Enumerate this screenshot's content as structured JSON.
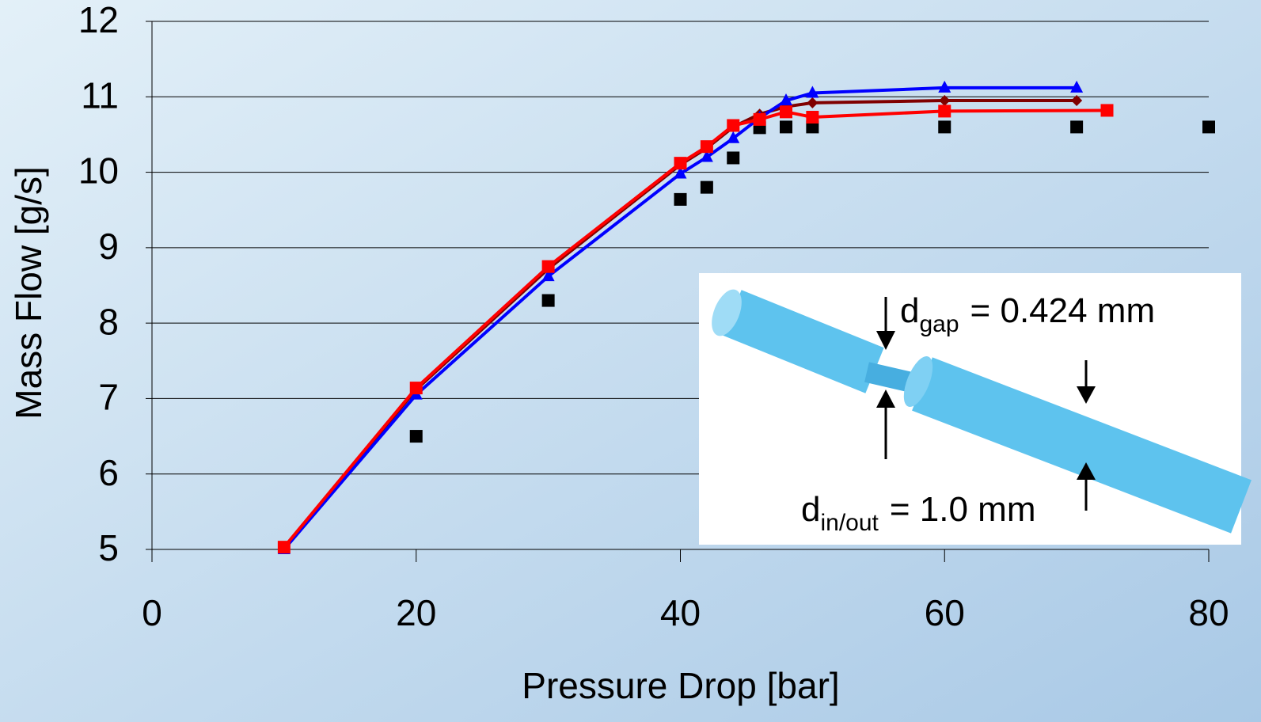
{
  "chart_data": {
    "type": "line",
    "xlabel": "Pressure Drop [bar]",
    "ylabel": "Mass Flow [g/s]",
    "xlim": [
      0,
      80
    ],
    "xticks": [
      0,
      20,
      40,
      60,
      80
    ],
    "ylim": [
      5,
      12
    ],
    "yticks": [
      5,
      6,
      7,
      8,
      9,
      10,
      11,
      12
    ],
    "grid": true,
    "series": [
      {
        "color": "#000000",
        "marker": "square",
        "line": false,
        "x": [
          20,
          30,
          40,
          42,
          44,
          46,
          48,
          50,
          60,
          70,
          80
        ],
        "values": [
          6.5,
          8.3,
          9.64,
          9.8,
          10.19,
          10.59,
          10.6,
          10.6,
          10.6,
          10.6,
          10.6
        ]
      },
      {
        "color": "#800000",
        "marker": "diamond",
        "line": true,
        "x": [
          10,
          20,
          30,
          40,
          42,
          44,
          46,
          48,
          50,
          60,
          70
        ],
        "values": [
          5.02,
          7.12,
          8.72,
          10.1,
          10.32,
          10.6,
          10.77,
          10.87,
          10.92,
          10.95,
          10.95
        ]
      },
      {
        "color": "#0000ff",
        "marker": "triangle",
        "line": true,
        "x": [
          10,
          20,
          30,
          40,
          42,
          44,
          46,
          48,
          50,
          60,
          70
        ],
        "values": [
          5.0,
          7.05,
          8.62,
          9.98,
          10.2,
          10.45,
          10.72,
          10.95,
          11.05,
          11.12,
          11.12
        ]
      },
      {
        "color": "#ff0000",
        "marker": "square",
        "line": true,
        "x": [
          10,
          20,
          30,
          40,
          42,
          44,
          46,
          48,
          50,
          60,
          72.3
        ],
        "values": [
          5.03,
          7.14,
          8.75,
          10.12,
          10.34,
          10.62,
          10.7,
          10.8,
          10.73,
          10.81,
          10.82
        ]
      }
    ],
    "annotations": [
      {
        "main": "d",
        "sub": "gap",
        "rest": "= 0.424 mm"
      },
      {
        "main": "d",
        "sub": "in/out",
        "rest": "= 1.0 mm"
      }
    ]
  }
}
